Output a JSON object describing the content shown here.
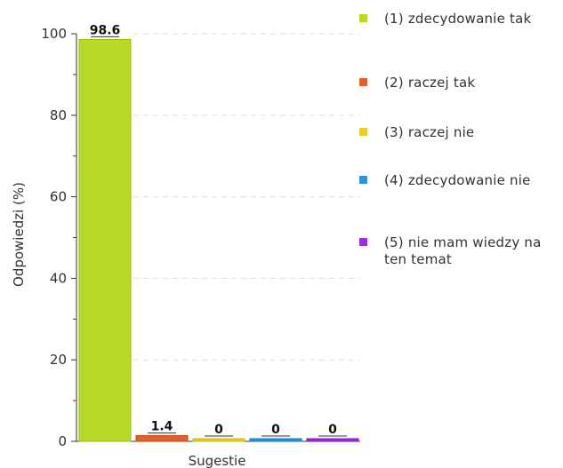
{
  "chart_data": {
    "type": "bar",
    "xlabel": "Sugestie",
    "ylabel": "Odpowiedzi (%)",
    "ylim": [
      0,
      100
    ],
    "yticks": [
      0,
      20,
      40,
      60,
      80,
      100
    ],
    "grid": true,
    "legend_position": "right",
    "series": [
      {
        "name": "(1) zdecydowanie tak",
        "value": 98.6,
        "label": "98.6",
        "color": "#b6d92a"
      },
      {
        "name": "(2) raczej tak",
        "value": 1.4,
        "label": "1.4",
        "color": "#e0612b"
      },
      {
        "name": "(3) raczej nie",
        "value": 0,
        "label": "0",
        "color": "#e6d12a"
      },
      {
        "name": "(4) zdecydowanie nie",
        "value": 0,
        "label": "0",
        "color": "#2e93d8"
      },
      {
        "name": "(5) nie mam wiedzy na ten temat",
        "value": 0,
        "label": "0",
        "color": "#9b30d9"
      }
    ]
  }
}
